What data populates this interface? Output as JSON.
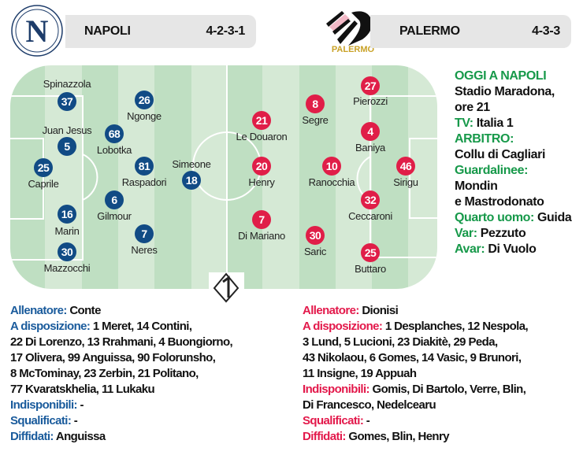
{
  "colors": {
    "napoli": "#114b85",
    "palermo": "#e01e48",
    "info_label": "#17994a",
    "pitch_light": "#d5e9d5",
    "pitch_dark": "#bfdfc2"
  },
  "home": {
    "name": "NAPOLI",
    "formation": "4-2-3-1",
    "logo": "napoli-crest-icon",
    "players": [
      {
        "num": "37",
        "name": "Spinazzola"
      },
      {
        "num": "26",
        "name": "Ngonge"
      },
      {
        "num": "5",
        "name": "Juan Jesus"
      },
      {
        "num": "68",
        "name": "Lobotka"
      },
      {
        "num": "25",
        "name": "Caprile"
      },
      {
        "num": "81",
        "name": "Raspadori"
      },
      {
        "num": "18",
        "name": "Simeone"
      },
      {
        "num": "6",
        "name": "Gilmour"
      },
      {
        "num": "16",
        "name": "Marin"
      },
      {
        "num": "7",
        "name": "Neres"
      },
      {
        "num": "30",
        "name": "Mazzocchi"
      }
    ],
    "details": {
      "coach_label": "Allenatore:",
      "coach": "Conte",
      "bench_label": "A disposizione:",
      "bench": [
        "1 Meret, 14 Contini,",
        "22 Di Lorenzo, 13 Rrahmani, 4 Buongiorno,",
        "17 Olivera, 99 Anguissa, 90 Folorunsho,",
        "8 McTominay, 23 Zerbin,  21 Politano,",
        "77 Kvaratskhelia, 11 Lukaku"
      ],
      "unavailable_label": "Indisponibili:",
      "unavailable": "-",
      "suspended_label": "Squalificati:",
      "suspended": "-",
      "warned_label": "Diffidati:",
      "warned": "Anguissa"
    }
  },
  "away": {
    "name": "PALERMO",
    "formation": "4-3-3",
    "logo": "palermo-eagle-icon",
    "logo_text": "PALERMO",
    "players": [
      {
        "num": "21",
        "name": "Le Douaron"
      },
      {
        "num": "20",
        "name": "Henry"
      },
      {
        "num": "7",
        "name": "Di Mariano"
      },
      {
        "num": "8",
        "name": "Segre"
      },
      {
        "num": "10",
        "name": "Ranocchia"
      },
      {
        "num": "30",
        "name": "Saric"
      },
      {
        "num": "27",
        "name": "Pierozzi"
      },
      {
        "num": "4",
        "name": "Baniya"
      },
      {
        "num": "32",
        "name": "Ceccaroni"
      },
      {
        "num": "46",
        "name": "Sirigu"
      },
      {
        "num": "25",
        "name": "Buttaro"
      }
    ],
    "details": {
      "coach_label": "Allenatore:",
      "coach": "Dionisi",
      "bench_label": "A disposizione:",
      "bench": [
        "1 Desplanches, 12 Nespola,",
        "3 Lund, 5 Lucioni, 23 Diakitè, 29 Peda,",
        "43 Nikolaou, 6 Gomes, 14 Vasic, 9 Brunori,",
        "11 Insigne, 19 Appuah"
      ],
      "unavailable_label": "Indisponibili:",
      "unavailable": [
        "Gomis, Di Bartolo, Verre, Blin,",
        "Di Francesco, Nedelcearu"
      ],
      "suspended_label": "Squalificati:",
      "suspended": "-",
      "warned_label": "Diffidati:",
      "warned": "Gomes, Blin, Henry"
    }
  },
  "match_info": {
    "title": "OGGI A NAPOLI",
    "venue": "Stadio Maradona,",
    "time": "ore 21",
    "tv_label": "TV:",
    "tv": "Italia 1",
    "referee_label": "ARBITRO:",
    "referee": "Collu di Cagliari",
    "linesmen_label": "Guardalinee:",
    "linesmen": [
      "Mondin",
      "e Mastrodonato"
    ],
    "fourth_label": "Quarto uomo:",
    "fourth": "Guida",
    "var_label": "Var:",
    "var": "Pezzuto",
    "avar_label": "Avar:",
    "avar": "Di Vuolo"
  },
  "broadcaster_logo": "italia-1-logo-icon"
}
